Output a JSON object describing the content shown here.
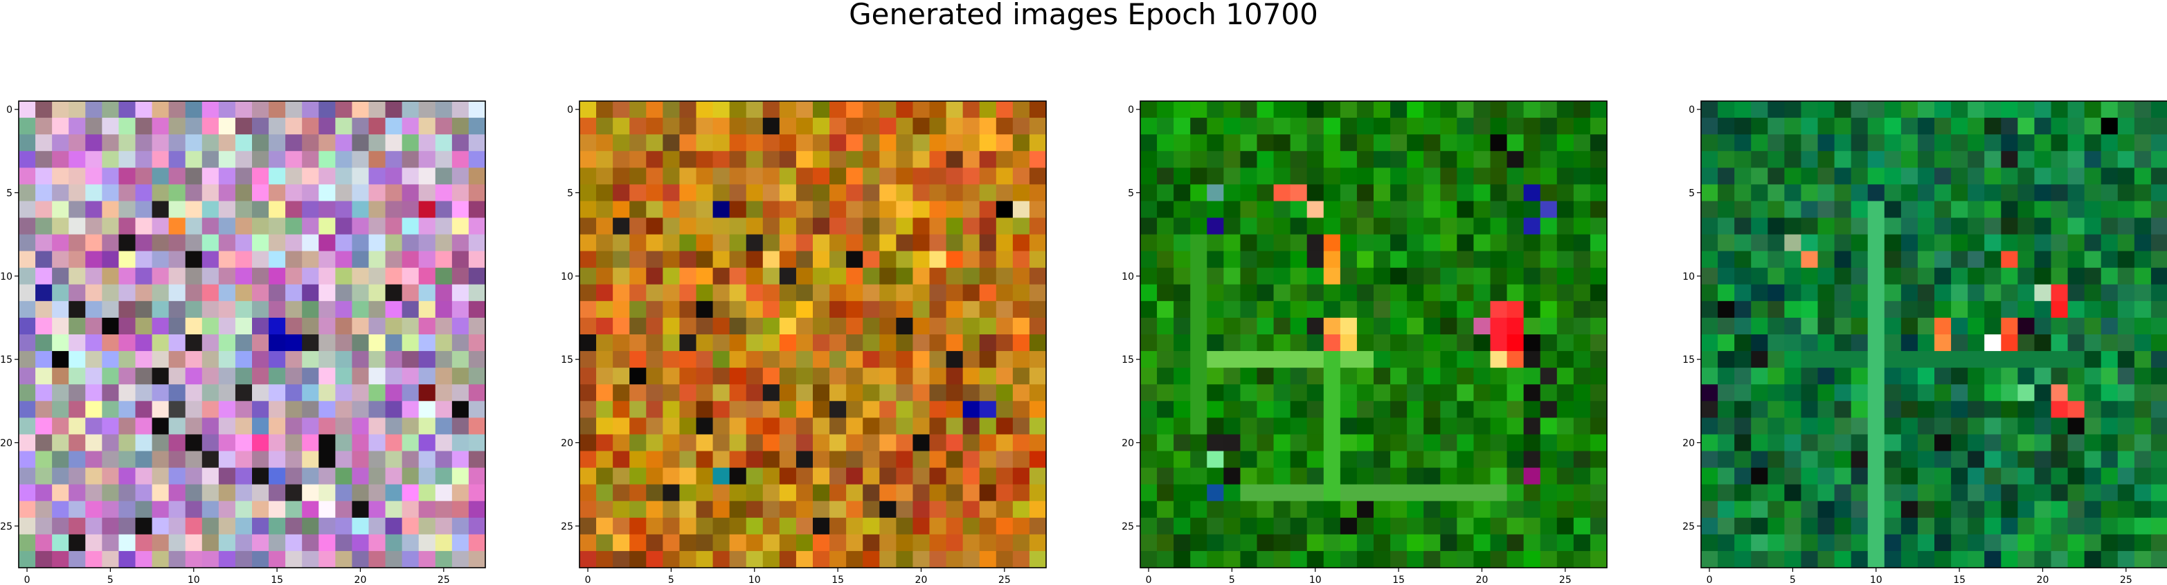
{
  "title": "Generated images Epoch 10700",
  "chart_data": [
    {
      "type": "heatmap",
      "panel": 1,
      "grid_size": 28,
      "extent": [
        -0.5,
        27.5
      ],
      "x_ticks": [
        0,
        5,
        10,
        15,
        20,
        25
      ],
      "y_ticks": [
        0,
        5,
        10,
        15,
        20,
        25
      ],
      "color_base": [
        0.72,
        0.62,
        0.72
      ],
      "color_variation": [
        0.26,
        0.3,
        0.26
      ],
      "palette_note_colors": [
        "#c9a7c6",
        "#b6c8a4",
        "#d68fc6",
        "#a4a8d6",
        "#c0c0c0"
      ],
      "dark_cells": [
        [
          6,
          8
        ],
        [
          7,
          9
        ],
        [
          8,
          6
        ],
        [
          9,
          10
        ],
        [
          11,
          22
        ],
        [
          12,
          3
        ],
        [
          13,
          5
        ],
        [
          14,
          10
        ],
        [
          15,
          2
        ],
        [
          16,
          8
        ],
        [
          17,
          13
        ],
        [
          18,
          26
        ],
        [
          19,
          8
        ],
        [
          20,
          10
        ],
        [
          21,
          11
        ],
        [
          22,
          14
        ],
        [
          23,
          16
        ],
        [
          24,
          20
        ],
        [
          25,
          7
        ],
        [
          26,
          3
        ],
        [
          13,
          15
        ],
        [
          14,
          16
        ],
        [
          14,
          17
        ],
        [
          20,
          18
        ],
        [
          21,
          18
        ]
      ],
      "accent_cells": [
        {
          "row": 7,
          "col": 9,
          "color": "#ff8a2a"
        },
        {
          "row": 13,
          "col": 15,
          "color": "#1010c8"
        },
        {
          "row": 14,
          "col": 15,
          "color": "#0000a0"
        },
        {
          "row": 14,
          "col": 16,
          "color": "#0000a8"
        },
        {
          "row": 11,
          "col": 1,
          "color": "#1a1a90"
        },
        {
          "row": 6,
          "col": 24,
          "color": "#c81030"
        },
        {
          "row": 17,
          "col": 24,
          "color": "#7a1010"
        },
        {
          "row": 20,
          "col": 14,
          "color": "#ff40a0"
        },
        {
          "row": 22,
          "col": 15,
          "color": "#5a70e0"
        },
        {
          "row": 18,
          "col": 9,
          "color": "#404040"
        },
        {
          "row": 21,
          "col": 21,
          "color": "#a0a0a0"
        }
      ]
    },
    {
      "type": "heatmap",
      "panel": 2,
      "grid_size": 28,
      "extent": [
        -0.5,
        27.5
      ],
      "x_ticks": [
        0,
        5,
        10,
        15,
        20,
        25
      ],
      "y_ticks": [
        0,
        5,
        10,
        15,
        20,
        25
      ],
      "color_base": [
        0.72,
        0.46,
        0.1
      ],
      "color_variation": [
        0.24,
        0.24,
        0.1
      ],
      "dark_cells": [
        [
          6,
          8
        ],
        [
          7,
          2
        ],
        [
          8,
          10
        ],
        [
          9,
          16
        ],
        [
          10,
          12
        ],
        [
          12,
          7
        ],
        [
          13,
          19
        ],
        [
          14,
          6
        ],
        [
          15,
          22
        ],
        [
          16,
          3
        ],
        [
          17,
          11
        ],
        [
          18,
          15
        ],
        [
          19,
          7
        ],
        [
          20,
          20
        ],
        [
          21,
          13
        ],
        [
          22,
          9
        ],
        [
          23,
          5
        ],
        [
          24,
          18
        ],
        [
          25,
          14
        ],
        [
          14,
          0
        ],
        [
          1,
          11
        ]
      ],
      "accent_cells": [
        {
          "row": 6,
          "col": 8,
          "color": "#00007a"
        },
        {
          "row": 6,
          "col": 25,
          "color": "#000000"
        },
        {
          "row": 6,
          "col": 26,
          "color": "#f0e0b0"
        },
        {
          "row": 18,
          "col": 23,
          "color": "#0000a0"
        },
        {
          "row": 18,
          "col": 24,
          "color": "#2020c0"
        },
        {
          "row": 22,
          "col": 8,
          "color": "#1090a0"
        },
        {
          "row": 9,
          "col": 11,
          "color": "#ffd060"
        },
        {
          "row": 9,
          "col": 21,
          "color": "#ffe070"
        },
        {
          "row": 13,
          "col": 12,
          "color": "#ffd040"
        },
        {
          "row": 4,
          "col": 16,
          "color": "#ff8020"
        },
        {
          "row": 9,
          "col": 22,
          "color": "#ff6010"
        }
      ]
    },
    {
      "type": "heatmap",
      "panel": 3,
      "grid_size": 28,
      "extent": [
        -0.5,
        27.5
      ],
      "x_ticks": [
        0,
        5,
        10,
        15,
        20,
        25
      ],
      "y_ticks": [
        0,
        5,
        10,
        15,
        20,
        25
      ],
      "color_base": [
        0.08,
        0.48,
        0.04
      ],
      "color_variation": [
        0.1,
        0.2,
        0.06
      ],
      "dark_cells": [
        [
          8,
          10
        ],
        [
          9,
          10
        ],
        [
          13,
          10
        ],
        [
          14,
          23
        ],
        [
          15,
          23
        ],
        [
          16,
          24
        ],
        [
          17,
          23
        ],
        [
          18,
          24
        ],
        [
          19,
          23
        ],
        [
          20,
          4
        ],
        [
          20,
          5
        ],
        [
          21,
          23
        ],
        [
          22,
          5
        ],
        [
          24,
          13
        ],
        [
          25,
          12
        ],
        [
          2,
          21
        ],
        [
          3,
          22
        ]
      ],
      "accent_cells": [
        {
          "row": 5,
          "col": 8,
          "color": "#ff6040"
        },
        {
          "row": 5,
          "col": 9,
          "color": "#ff7050"
        },
        {
          "row": 6,
          "col": 10,
          "color": "#ffc090"
        },
        {
          "row": 8,
          "col": 11,
          "color": "#ff7010"
        },
        {
          "row": 9,
          "col": 11,
          "color": "#ffa020"
        },
        {
          "row": 10,
          "col": 11,
          "color": "#ffb030"
        },
        {
          "row": 13,
          "col": 12,
          "color": "#ffe070"
        },
        {
          "row": 14,
          "col": 12,
          "color": "#ffd050"
        },
        {
          "row": 13,
          "col": 11,
          "color": "#ffb040"
        },
        {
          "row": 14,
          "col": 11,
          "color": "#ff6040"
        },
        {
          "row": 12,
          "col": 21,
          "color": "#ff4040"
        },
        {
          "row": 12,
          "col": 22,
          "color": "#ff3030"
        },
        {
          "row": 13,
          "col": 21,
          "color": "#ff2030"
        },
        {
          "row": 13,
          "col": 22,
          "color": "#ff1020"
        },
        {
          "row": 14,
          "col": 21,
          "color": "#ff2030"
        },
        {
          "row": 14,
          "col": 22,
          "color": "#ff0010"
        },
        {
          "row": 15,
          "col": 21,
          "color": "#ffe080"
        },
        {
          "row": 15,
          "col": 22,
          "color": "#ff6030"
        },
        {
          "row": 13,
          "col": 20,
          "color": "#d060a0"
        },
        {
          "row": 7,
          "col": 4,
          "color": "#200890"
        },
        {
          "row": 5,
          "col": 23,
          "color": "#1010a0"
        },
        {
          "row": 7,
          "col": 23,
          "color": "#2020b0"
        },
        {
          "row": 6,
          "col": 24,
          "color": "#4040c0"
        },
        {
          "row": 22,
          "col": 23,
          "color": "#a01080"
        },
        {
          "row": 23,
          "col": 4,
          "color": "#1050a0"
        },
        {
          "row": 21,
          "col": 4,
          "color": "#80f0a0"
        },
        {
          "row": 5,
          "col": 4,
          "color": "#60a0a0"
        }
      ],
      "bright_rows": [
        {
          "row": 15,
          "from": 4,
          "to": 13,
          "color": "#70d050"
        },
        {
          "row": 23,
          "from": 6,
          "to": 21,
          "color": "#50b040"
        }
      ],
      "bright_cols": [
        {
          "col": 3,
          "from": 8,
          "to": 19,
          "color": "#30a020"
        },
        {
          "col": 11,
          "from": 15,
          "to": 23,
          "color": "#40c030"
        }
      ]
    },
    {
      "type": "heatmap",
      "panel": 4,
      "grid_size": 28,
      "extent": [
        -0.5,
        27.5
      ],
      "x_ticks": [
        0,
        5,
        10,
        15,
        20,
        25
      ],
      "y_ticks": [
        0,
        5,
        10,
        15,
        20,
        25
      ],
      "color_base": [
        0.06,
        0.46,
        0.22
      ],
      "color_variation": [
        0.1,
        0.22,
        0.14
      ],
      "dark_cells": [
        [
          1,
          24
        ],
        [
          12,
          1
        ],
        [
          15,
          3
        ],
        [
          17,
          0
        ],
        [
          18,
          0
        ],
        [
          19,
          22
        ],
        [
          20,
          14
        ],
        [
          21,
          9
        ],
        [
          13,
          19
        ],
        [
          22,
          3
        ],
        [
          3,
          18
        ],
        [
          24,
          12
        ]
      ],
      "accent_cells": [
        {
          "row": 9,
          "col": 6,
          "color": "#ff8a50"
        },
        {
          "row": 8,
          "col": 5,
          "color": "#a0b890"
        },
        {
          "row": 9,
          "col": 18,
          "color": "#ff5030"
        },
        {
          "row": 11,
          "col": 21,
          "color": "#ff3030"
        },
        {
          "row": 12,
          "col": 21,
          "color": "#ff2020"
        },
        {
          "row": 11,
          "col": 20,
          "color": "#c0e0c0"
        },
        {
          "row": 13,
          "col": 14,
          "color": "#ff7030"
        },
        {
          "row": 14,
          "col": 14,
          "color": "#ff9040"
        },
        {
          "row": 14,
          "col": 17,
          "color": "#ffffff"
        },
        {
          "row": 14,
          "col": 18,
          "color": "#ff4020"
        },
        {
          "row": 13,
          "col": 18,
          "color": "#ff6030"
        },
        {
          "row": 18,
          "col": 21,
          "color": "#ff3030"
        },
        {
          "row": 18,
          "col": 22,
          "color": "#ff5040"
        },
        {
          "row": 17,
          "col": 21,
          "color": "#ff8060"
        },
        {
          "row": 17,
          "col": 19,
          "color": "#70e090"
        },
        {
          "row": 1,
          "col": 24,
          "color": "#000000"
        },
        {
          "row": 13,
          "col": 19,
          "color": "#200020"
        },
        {
          "row": 17,
          "col": 0,
          "color": "#200030"
        }
      ],
      "bright_cols": [
        {
          "col": 10,
          "from": 6,
          "to": 27,
          "color": "#40c070"
        }
      ],
      "bright_rows": [
        {
          "row": 15,
          "from": 6,
          "to": 22,
          "color": "#108040"
        }
      ]
    }
  ],
  "colors": {
    "axes_edge": "#000000",
    "background": "#ffffff"
  }
}
